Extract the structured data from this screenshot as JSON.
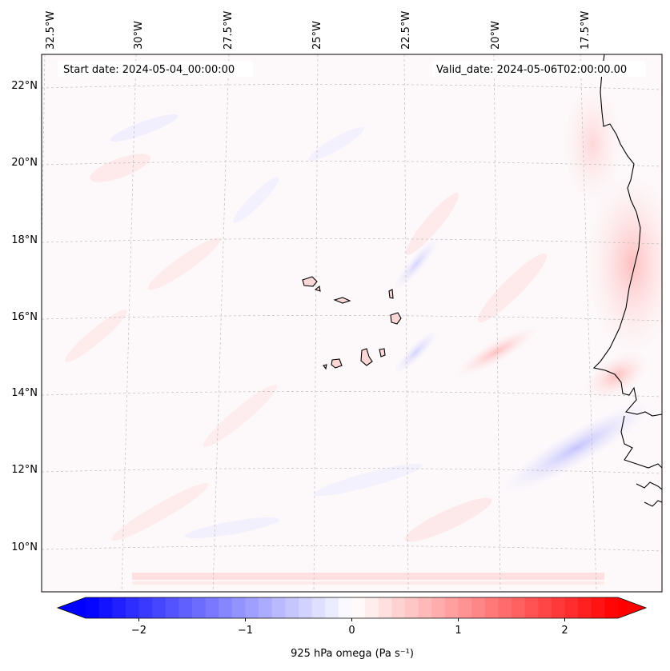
{
  "map": {
    "start_date": "Start date: 2024-05-04_00:00:00",
    "valid_date": "Valid_date: 2024-05-06T02:00:00.00",
    "lon_labels": [
      "32.5°W",
      "30°W",
      "27.5°W",
      "25°W",
      "22.5°W",
      "20°W",
      "17.5°W"
    ],
    "lat_labels": [
      "22°N",
      "20°N",
      "18°N",
      "16°N",
      "14°N",
      "12°N",
      "10°N"
    ],
    "field_colors": {
      "positive": "#ff0000",
      "negative": "#0000ff",
      "neutral": "#ffffff"
    },
    "coastline_color": "#000000",
    "gridlines": true
  },
  "colorbar": {
    "label": "925 hPa omega (Pa s⁻¹)",
    "ticks": [
      "−2",
      "−1",
      "0",
      "1",
      "2"
    ],
    "tick_values": [
      -2,
      -1,
      0,
      1,
      2
    ],
    "range": [
      -2.5,
      2.5
    ],
    "extend": "both"
  }
}
